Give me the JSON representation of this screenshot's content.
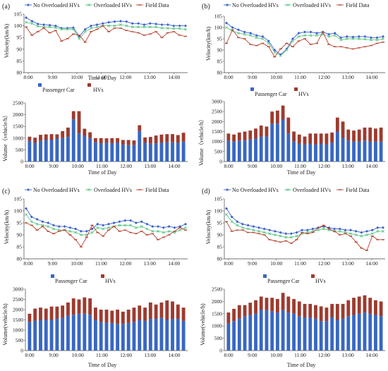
{
  "panels": [
    {
      "label": "(a)",
      "speed": {
        "type": "line",
        "legend": [
          "No Overloaded HVs",
          "Overloaded HVs",
          "Field Data"
        ],
        "ylabel": "Velocity(km/h)",
        "xlabel": "Time of Day",
        "ylim": [
          80,
          105
        ],
        "yticks": [
          80,
          85,
          90,
          95,
          100,
          105
        ],
        "xticks": [
          "8:00",
          "9:00",
          "10:00",
          "11:00",
          "12:00",
          "13:00",
          "14:00"
        ],
        "series": [
          {
            "name": "No Overloaded HVs",
            "color": "#3a5fcd",
            "marker": "diamond",
            "values": [
              103.5,
              102.0,
              100.8,
              100.5,
              100.3,
              100.0,
              99.0,
              99.0,
              99.2,
              95.5,
              98.5,
              100.0,
              100.5,
              101.0,
              101.5,
              101.8,
              102.0,
              101.8,
              101.0,
              101.0,
              100.5,
              101.0,
              100.8,
              100.5,
              100.5,
              100.0,
              100.0,
              100.0
            ]
          },
          {
            "name": "Overloaded HVs",
            "color": "#5fc787",
            "marker": "x",
            "values": [
              101.5,
              101.0,
              99.8,
              99.5,
              99.5,
              99.2,
              98.5,
              98.5,
              98.5,
              94.5,
              97.5,
              99.0,
              99.5,
              100.0,
              100.0,
              100.0,
              100.5,
              100.0,
              99.5,
              99.5,
              99.5,
              99.5,
              99.5,
              99.0,
              99.0,
              98.8,
              98.8,
              98.5
            ]
          },
          {
            "name": "Field Data",
            "color": "#b8422e",
            "marker": "dash",
            "values": [
              99.5,
              96.0,
              97.5,
              99.0,
              97.0,
              98.0,
              93.5,
              94.5,
              96.5,
              96.0,
              93.0,
              97.5,
              98.5,
              100.0,
              97.5,
              99.0,
              99.0,
              98.0,
              97.5,
              97.0,
              96.0,
              96.5,
              97.5,
              95.0,
              97.0,
              97.5,
              96.0,
              95.5
            ]
          }
        ]
      },
      "volume": {
        "type": "bar",
        "legend": [
          "Passenger Car",
          "HVs"
        ],
        "ylabel": "Volume（vehicle/h）",
        "xlabel": "Time of Day",
        "ylim": [
          0,
          2500
        ],
        "yticks": [
          0,
          500,
          1000,
          1500,
          2000,
          2500
        ],
        "xticks": [
          "8:00",
          "9:00",
          "10:00",
          "11:00",
          "12:00",
          "13:00",
          "14:00"
        ],
        "passenger": [
          880,
          800,
          880,
          920,
          920,
          980,
          1000,
          1050,
          1800,
          1200,
          1100,
          1000,
          820,
          780,
          800,
          780,
          800,
          720,
          700,
          700,
          1300,
          800,
          760,
          780,
          800,
          820,
          820,
          800,
          850
        ],
        "hvs": [
          180,
          220,
          260,
          240,
          250,
          180,
          300,
          400,
          350,
          950,
          300,
          250,
          180,
          220,
          190,
          220,
          200,
          200,
          220,
          200,
          250,
          230,
          290,
          330,
          350,
          350,
          350,
          330,
          380
        ]
      }
    },
    {
      "label": "(b)",
      "speed": {
        "type": "line",
        "legend": [
          "No Overloaded HVs",
          "Overloaded HVs",
          "Field Data"
        ],
        "ylabel": "Velocity(km/h)",
        "xlabel": "",
        "ylim": [
          80,
          105
        ],
        "yticks": [
          80,
          85,
          90,
          95,
          100,
          105
        ],
        "xticks": [
          "8:00",
          "9:00",
          "10:00",
          "11:00",
          "12:00",
          "13:00",
          "14:00"
        ],
        "series": [
          {
            "name": "No Overloaded HVs",
            "color": "#3a5fcd",
            "marker": "diamond",
            "values": [
              102.0,
              100.0,
              99.0,
              98.0,
              97.5,
              96.5,
              96.0,
              94.0,
              90.0,
              88.0,
              90.5,
              95.0,
              97.5,
              98.0,
              98.0,
              97.5,
              98.0,
              97.0,
              97.5,
              95.5,
              96.0,
              95.8,
              96.0,
              96.0,
              95.5,
              95.5,
              96.0
            ]
          },
          {
            "name": "Overloaded HVs",
            "color": "#5fc787",
            "marker": "x",
            "values": [
              100.0,
              98.5,
              97.5,
              97.0,
              96.5,
              95.5,
              95.0,
              93.0,
              89.0,
              87.5,
              90.0,
              94.0,
              96.0,
              96.5,
              96.5,
              96.5,
              97.0,
              96.0,
              96.5,
              94.5,
              95.0,
              95.0,
              95.0,
              94.8,
              94.5,
              94.5,
              95.0
            ]
          },
          {
            "name": "Field Data",
            "color": "#b8422e",
            "marker": "dash",
            "values": [
              93.0,
              99.0,
              95.5,
              95.0,
              92.5,
              92.0,
              93.0,
              91.5,
              87.0,
              90.5,
              93.0,
              91.5,
              94.0,
              95.0,
              92.5,
              93.0,
              98.0,
              92.5,
              91.5,
              91.5,
              91.0,
              90.5,
              91.0,
              91.5,
              92.0,
              93.0,
              93.5
            ]
          }
        ]
      },
      "volume": {
        "type": "bar",
        "legend": [
          "Passenger Car",
          "HVs"
        ],
        "ylabel": "Volume（vehicle/h）",
        "xlabel": "Time of Day",
        "ylim": [
          0,
          3000
        ],
        "yticks": [
          0,
          500,
          1000,
          1500,
          2000,
          2500,
          3000
        ],
        "xticks": [
          "8:00",
          "9:00",
          "10:00",
          "11:00",
          "12:00",
          "13:00",
          "14:00"
        ],
        "passenger": [
          1050,
          1000,
          1050,
          1050,
          1100,
          1150,
          1250,
          1250,
          1900,
          1900,
          2100,
          1400,
          1000,
          900,
          850,
          900,
          850,
          900,
          850,
          950,
          1500,
          1200,
          1050,
          1000,
          1000,
          1050,
          1000,
          1000,
          1000
        ],
        "hvs": [
          350,
          350,
          400,
          450,
          450,
          500,
          550,
          500,
          600,
          650,
          700,
          800,
          500,
          450,
          400,
          500,
          550,
          500,
          550,
          500,
          700,
          800,
          550,
          550,
          600,
          650,
          700,
          650,
          700
        ]
      }
    },
    {
      "label": "(c)",
      "speed": {
        "type": "line",
        "legend": [
          "No Overloaded HVs",
          "Overloaded HVs",
          "Field Data"
        ],
        "ylabel": "Velocity(km/h)",
        "xlabel": "",
        "ylim": [
          80,
          105
        ],
        "yticks": [
          80,
          85,
          90,
          95,
          100,
          105
        ],
        "xticks": [
          "8:00",
          "9:00",
          "10:00",
          "11:00",
          "12:00",
          "13:00",
          "14:00"
        ],
        "series": [
          {
            "name": "No Overloaded HVs",
            "color": "#3a5fcd",
            "marker": "diamond",
            "values": [
              101.0,
              97.5,
              96.5,
              95.5,
              95.0,
              94.0,
              93.5,
              93.5,
              93.0,
              92.5,
              91.5,
              91.5,
              92.5,
              94.5,
              94.0,
              94.5,
              95.0,
              95.5,
              96.0,
              96.0,
              95.0,
              95.5,
              94.5,
              93.5,
              93.5,
              93.0,
              93.5,
              93.0,
              93.5,
              94.5
            ]
          },
          {
            "name": "Overloaded HVs",
            "color": "#5fc787",
            "marker": "x",
            "values": [
              98.5,
              95.5,
              94.5,
              94.0,
              93.5,
              92.5,
              92.0,
              92.0,
              91.5,
              91.0,
              90.0,
              90.0,
              91.0,
              93.0,
              92.5,
              93.0,
              93.5,
              94.0,
              94.0,
              94.0,
              93.0,
              93.5,
              92.5,
              91.5,
              91.5,
              91.0,
              91.5,
              91.0,
              92.0,
              93.0
            ]
          },
          {
            "name": "Field Data",
            "color": "#b8422e",
            "marker": "dash",
            "values": [
              95.0,
              94.0,
              92.0,
              93.5,
              91.5,
              90.5,
              91.5,
              92.0,
              90.0,
              88.0,
              85.0,
              89.0,
              94.0,
              91.0,
              89.5,
              92.0,
              93.5,
              91.5,
              92.0,
              91.0,
              90.5,
              91.5,
              90.0,
              90.5,
              88.0,
              89.0,
              90.0,
              91.5,
              93.0,
              92.0
            ]
          }
        ]
      },
      "volume": {
        "type": "bar",
        "legend": [
          "Passenger Car",
          "HVs"
        ],
        "ylabel": "Volume(vehicle/h)",
        "xlabel": "Time of Day",
        "ylim": [
          0,
          3000
        ],
        "yticks": [
          0,
          500,
          1000,
          1500,
          2000,
          2500,
          3000
        ],
        "xticks": [
          "8:00",
          "9:00",
          "10:00",
          "11:00",
          "12:00",
          "13:00",
          "14:00"
        ],
        "passenger": [
          1400,
          1450,
          1500,
          1500,
          1500,
          1550,
          1600,
          1700,
          1750,
          1800,
          1800,
          1750,
          1500,
          1400,
          1350,
          1350,
          1300,
          1300,
          1350,
          1400,
          1500,
          1450,
          1550,
          1550,
          1600,
          1500,
          1550,
          1550,
          1450
        ],
        "hvs": [
          400,
          600,
          600,
          550,
          650,
          600,
          600,
          650,
          800,
          700,
          800,
          800,
          600,
          600,
          650,
          600,
          700,
          600,
          650,
          700,
          700,
          650,
          800,
          700,
          750,
          950,
          850,
          700,
          650
        ]
      }
    },
    {
      "label": "(d)",
      "speed": {
        "type": "line",
        "legend": [
          "No Overloaded HVs",
          "Overloaded HVs",
          "Field Data"
        ],
        "ylabel": "Velocity(km/h)",
        "xlabel": "",
        "ylim": [
          80,
          105
        ],
        "yticks": [
          80,
          85,
          90,
          95,
          100,
          105
        ],
        "xticks": [
          "8:00",
          "9:00",
          "10:00",
          "11:00",
          "12:00",
          "13:00",
          "14:00"
        ],
        "series": [
          {
            "name": "No Overloaded HVs",
            "color": "#3a5fcd",
            "marker": "diamond",
            "values": [
              101.0,
              97.5,
              95.5,
              94.5,
              94.0,
              93.5,
              93.0,
              92.5,
              92.0,
              91.5,
              91.0,
              90.5,
              90.5,
              91.0,
              92.0,
              92.0,
              92.5,
              93.0,
              93.5,
              93.0,
              92.5,
              92.5,
              92.0,
              92.0,
              91.5,
              91.0,
              91.5,
              92.0,
              93.0,
              93.0
            ]
          },
          {
            "name": "Overloaded HVs",
            "color": "#5fc787",
            "marker": "x",
            "values": [
              98.5,
              95.5,
              94.0,
              93.0,
              92.5,
              92.0,
              91.5,
              91.0,
              90.5,
              90.0,
              89.5,
              89.0,
              89.0,
              89.5,
              90.5,
              91.0,
              91.5,
              92.0,
              92.5,
              92.0,
              91.5,
              91.5,
              91.0,
              90.5,
              90.0,
              89.5,
              90.0,
              90.5,
              91.5,
              91.5
            ]
          },
          {
            "name": "Field Data",
            "color": "#b8422e",
            "marker": "dash",
            "values": [
              95.5,
              91.5,
              92.0,
              92.0,
              91.0,
              91.0,
              90.5,
              90.0,
              88.0,
              87.5,
              87.0,
              87.5,
              86.5,
              88.0,
              91.0,
              90.5,
              91.0,
              93.0,
              94.0,
              92.5,
              91.5,
              90.0,
              90.5,
              89.5,
              87.0,
              84.5,
              83.5,
              89.5,
              88.0,
              88.0
            ]
          }
        ]
      },
      "volume": {
        "type": "bar",
        "legend": [
          "Passenger Car",
          "HVs"
        ],
        "ylabel": "Volume(vehicle/h)",
        "xlabel": "Time of Day",
        "ylim": [
          0,
          2500
        ],
        "yticks": [
          0,
          500,
          1000,
          1500,
          2000,
          2500
        ],
        "xticks": [
          "8:00",
          "9:00",
          "10:00",
          "11:00",
          "12:00",
          "13:00",
          "14:00"
        ],
        "passenger": [
          1100,
          1200,
          1300,
          1400,
          1450,
          1500,
          1650,
          1650,
          1600,
          1550,
          1650,
          1550,
          1500,
          1400,
          1350,
          1350,
          1300,
          1200,
          1200,
          1350,
          1250,
          1300,
          1400,
          1450,
          1500,
          1550,
          1500,
          1450,
          1400
        ],
        "hvs": [
          450,
          500,
          550,
          450,
          500,
          550,
          550,
          500,
          550,
          550,
          700,
          650,
          600,
          600,
          550,
          550,
          550,
          600,
          550,
          550,
          650,
          600,
          650,
          700,
          700,
          700,
          650,
          600,
          600
        ]
      }
    }
  ]
}
